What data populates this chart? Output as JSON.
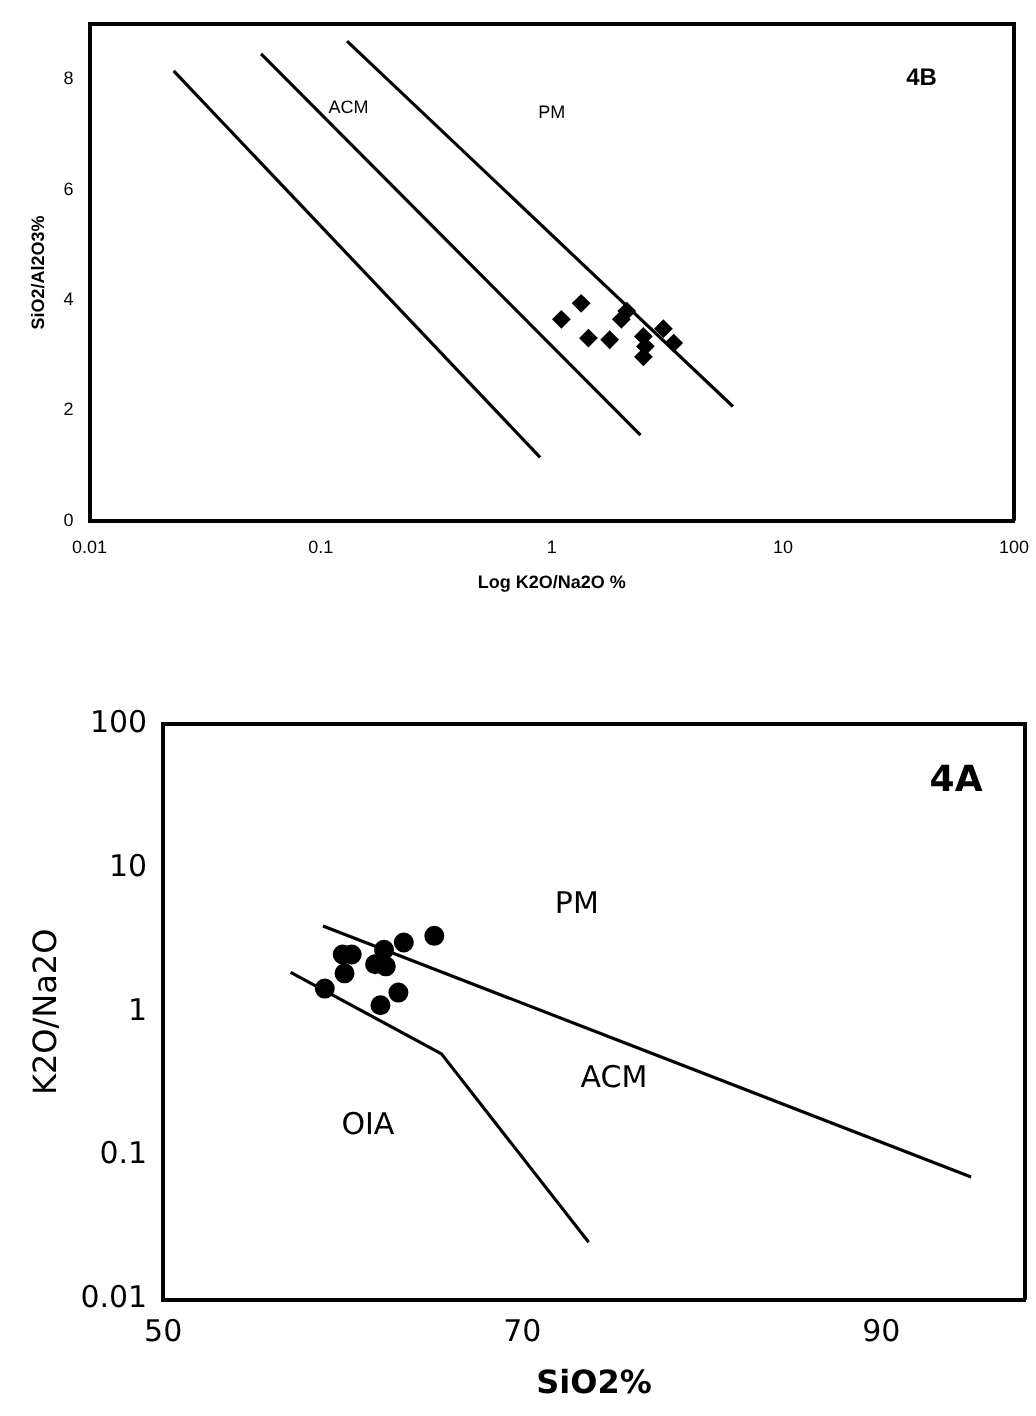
{
  "chart_data": [
    {
      "type": "scatter",
      "xlabel": "Log K2O/Na2O %",
      "ylabel": "SiO2/Al2O3%",
      "log": "x",
      "xlim": [
        0.01,
        100
      ],
      "xticks": [
        0.01,
        0.1,
        1,
        10,
        100
      ],
      "ylim": [
        0,
        9
      ],
      "yticks": [
        0,
        2,
        4,
        6,
        8
      ],
      "grid": false,
      "legend": false,
      "series": [
        {
          "type": "scatter",
          "marker": "diamond",
          "color": "#000000",
          "x": [
            1.1,
            1.34,
            1.44,
            1.78,
            2.0,
            2.11,
            2.49,
            2.54,
            2.49,
            3.04,
            3.37
          ],
          "values": [
            3.65,
            3.94,
            3.31,
            3.28,
            3.65,
            3.8,
            3.34,
            3.16,
            2.97,
            3.48,
            3.22
          ]
        },
        {
          "type": "line",
          "color": "#000000",
          "x": [
            0.0231,
            0.89
          ],
          "values": [
            8.15,
            1.15
          ]
        },
        {
          "type": "line",
          "color": "#000000",
          "x": [
            0.0552,
            2.42
          ],
          "values": [
            8.46,
            1.55
          ]
        },
        {
          "type": "line",
          "color": "#000000",
          "x": [
            0.13,
            6.08
          ],
          "values": [
            8.69,
            2.07
          ]
        }
      ],
      "annotations": [
        "4B",
        "ACM",
        "PM"
      ]
    },
    {
      "type": "scatter",
      "xlabel": "SiO2%",
      "ylabel": "K2O/Na2O",
      "log": "y",
      "xlim": [
        50,
        98
      ],
      "xticks": [
        50,
        70,
        90
      ],
      "ylim": [
        0.01,
        100
      ],
      "yticks": [
        0.01,
        0.1,
        1,
        10,
        100
      ],
      "grid": false,
      "legend": false,
      "series": [
        {
          "type": "scatter",
          "marker": "circle",
          "color": "#000000",
          "x": [
            59.0,
            60.1,
            60.0,
            60.5,
            61.8,
            62.3,
            62.4,
            62.1,
            63.1,
            63.4,
            65.1
          ],
          "values": [
            1.45,
            1.85,
            2.5,
            2.5,
            2.14,
            2.7,
            2.07,
            1.11,
            1.36,
            3.03,
            3.37
          ]
        },
        {
          "type": "line",
          "color": "#000000",
          "x": [
            58.9,
            95.0
          ],
          "values": [
            3.95,
            0.071
          ]
        },
        {
          "type": "line",
          "color": "#000000",
          "x": [
            57.1,
            65.5,
            73.7
          ],
          "values": [
            1.88,
            0.51,
            0.025
          ]
        }
      ],
      "annotations": [
        "4A",
        "PM",
        "ACM",
        "OIA"
      ]
    }
  ]
}
